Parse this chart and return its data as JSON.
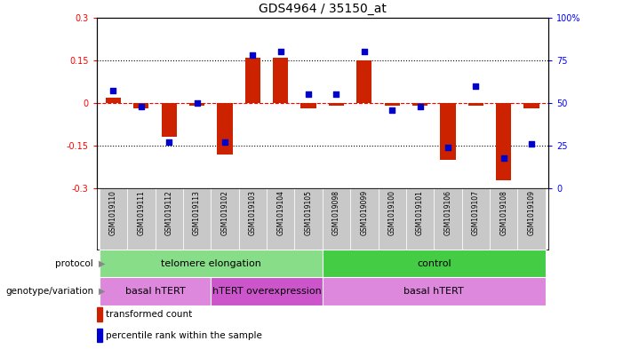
{
  "title": "GDS4964 / 35150_at",
  "samples": [
    "GSM1019110",
    "GSM1019111",
    "GSM1019112",
    "GSM1019113",
    "GSM1019102",
    "GSM1019103",
    "GSM1019104",
    "GSM1019105",
    "GSM1019098",
    "GSM1019099",
    "GSM1019100",
    "GSM1019101",
    "GSM1019106",
    "GSM1019107",
    "GSM1019108",
    "GSM1019109"
  ],
  "transformed_count": [
    0.02,
    -0.02,
    -0.12,
    -0.01,
    -0.18,
    0.16,
    0.16,
    -0.02,
    -0.01,
    0.15,
    -0.01,
    -0.01,
    -0.2,
    -0.01,
    -0.27,
    -0.02
  ],
  "percentile_rank": [
    57,
    48,
    27,
    50,
    27,
    78,
    80,
    55,
    55,
    80,
    46,
    48,
    24,
    60,
    18,
    26
  ],
  "ylim_left": [
    -0.3,
    0.3
  ],
  "ylim_right": [
    0,
    100
  ],
  "yticks_left": [
    -0.3,
    -0.15,
    0,
    0.15,
    0.3
  ],
  "yticks_right": [
    0,
    25,
    50,
    75,
    100
  ],
  "bar_color": "#cc2200",
  "dot_color": "#0000cc",
  "protocol_labels": [
    {
      "label": "telomere elongation",
      "start": 0,
      "end": 7,
      "color": "#88dd88"
    },
    {
      "label": "control",
      "start": 8,
      "end": 15,
      "color": "#44cc44"
    }
  ],
  "genotype_labels": [
    {
      "label": "basal hTERT",
      "start": 0,
      "end": 3,
      "color": "#dd88dd"
    },
    {
      "label": "hTERT overexpression",
      "start": 4,
      "end": 7,
      "color": "#cc55cc"
    },
    {
      "label": "basal hTERT",
      "start": 8,
      "end": 15,
      "color": "#dd88dd"
    }
  ],
  "protocol_row_label": "protocol",
  "genotype_row_label": "genotype/variation",
  "legend_bar_label": "transformed count",
  "legend_dot_label": "percentile rank within the sample",
  "title_fontsize": 10,
  "tick_fontsize": 7,
  "row_label_fontsize": 7.5,
  "sample_fontsize": 5.5,
  "legend_fontsize": 7.5,
  "bar_width": 0.55,
  "dot_size": 16
}
